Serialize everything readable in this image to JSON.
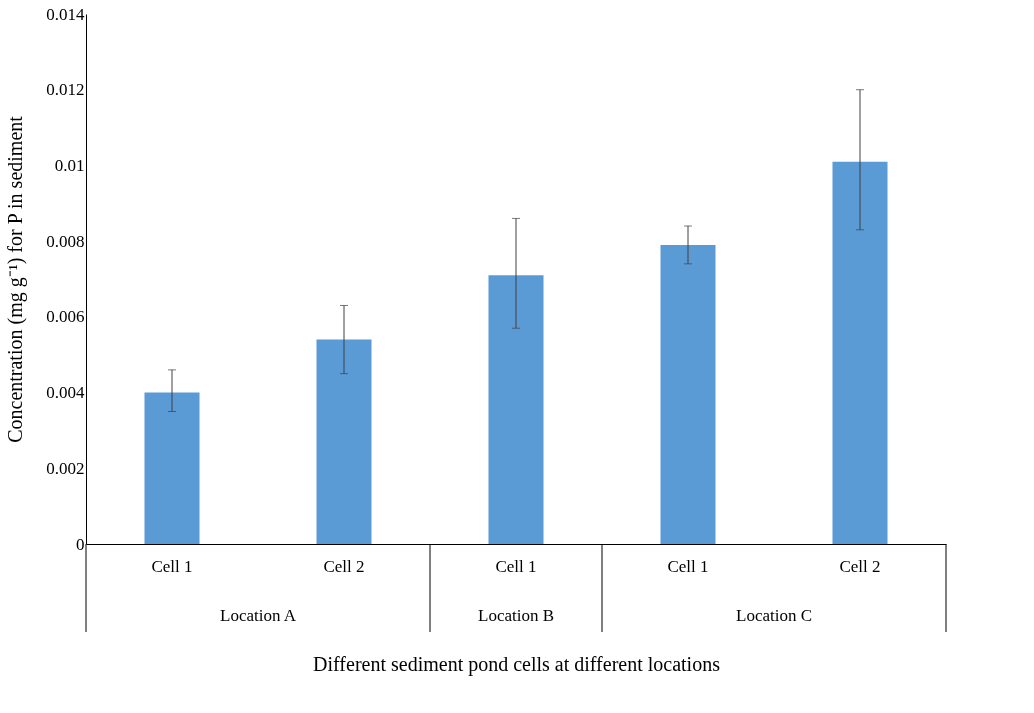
{
  "chart_data": {
    "type": "bar",
    "xlabel": "Different sediment pond cells at different locations",
    "ylabel": "Concentration (mg g⁻¹) for P in sediment",
    "categories": [
      "Cell 1",
      "Cell 2",
      "Cell 1",
      "Cell 1",
      "Cell 2"
    ],
    "values": [
      0.004,
      0.0054,
      0.0071,
      0.0079,
      0.0101
    ],
    "errors": [
      [
        0.0035,
        0.0046
      ],
      [
        0.0045,
        0.0063
      ],
      [
        0.0057,
        0.0086
      ],
      [
        0.0074,
        0.0084
      ],
      [
        0.0083,
        0.012
      ]
    ],
    "color": "#5b9bd5",
    "ylim": [
      0,
      0.014
    ],
    "yticks": [
      0,
      0.002,
      0.004,
      0.006,
      0.008,
      0.01,
      0.012,
      0.014
    ],
    "grid": false,
    "annotations": [
      "Location A",
      "Location B",
      "Location C"
    ]
  }
}
